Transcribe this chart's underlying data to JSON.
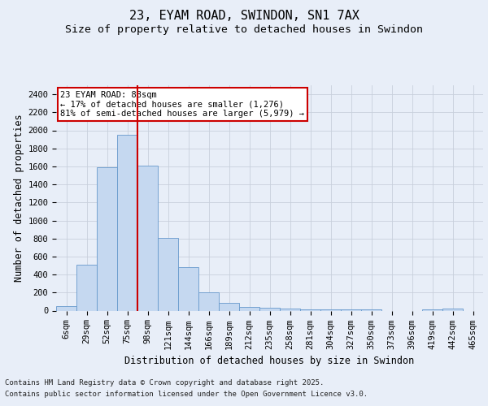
{
  "title": "23, EYAM ROAD, SWINDON, SN1 7AX",
  "subtitle": "Size of property relative to detached houses in Swindon",
  "xlabel": "Distribution of detached houses by size in Swindon",
  "ylabel": "Number of detached properties",
  "categories": [
    "6sqm",
    "29sqm",
    "52sqm",
    "75sqm",
    "98sqm",
    "121sqm",
    "144sqm",
    "166sqm",
    "189sqm",
    "212sqm",
    "235sqm",
    "258sqm",
    "281sqm",
    "304sqm",
    "327sqm",
    "350sqm",
    "373sqm",
    "396sqm",
    "419sqm",
    "442sqm",
    "465sqm"
  ],
  "values": [
    50,
    510,
    1590,
    1950,
    1610,
    805,
    480,
    200,
    90,
    40,
    30,
    20,
    15,
    10,
    10,
    10,
    0,
    0,
    10,
    25,
    0
  ],
  "bar_color": "#c5d8f0",
  "bar_edge_color": "#6699cc",
  "vline_x": 3.5,
  "vline_color": "#cc0000",
  "annotation_text": "23 EYAM ROAD: 88sqm\n← 17% of detached houses are smaller (1,276)\n81% of semi-detached houses are larger (5,979) →",
  "annotation_box_color": "#ffffff",
  "annotation_box_edge_color": "#cc0000",
  "ylim": [
    0,
    2500
  ],
  "yticks": [
    0,
    200,
    400,
    600,
    800,
    1000,
    1200,
    1400,
    1600,
    1800,
    2000,
    2200,
    2400
  ],
  "bg_color": "#e8eef8",
  "plot_bg_color": "#e8eef8",
  "grid_color": "#c8d0dc",
  "footer_line1": "Contains HM Land Registry data © Crown copyright and database right 2025.",
  "footer_line2": "Contains public sector information licensed under the Open Government Licence v3.0.",
  "title_fontsize": 11,
  "subtitle_fontsize": 9.5,
  "axis_label_fontsize": 8.5,
  "tick_fontsize": 7.5,
  "annotation_fontsize": 7.5,
  "footer_fontsize": 6.5
}
